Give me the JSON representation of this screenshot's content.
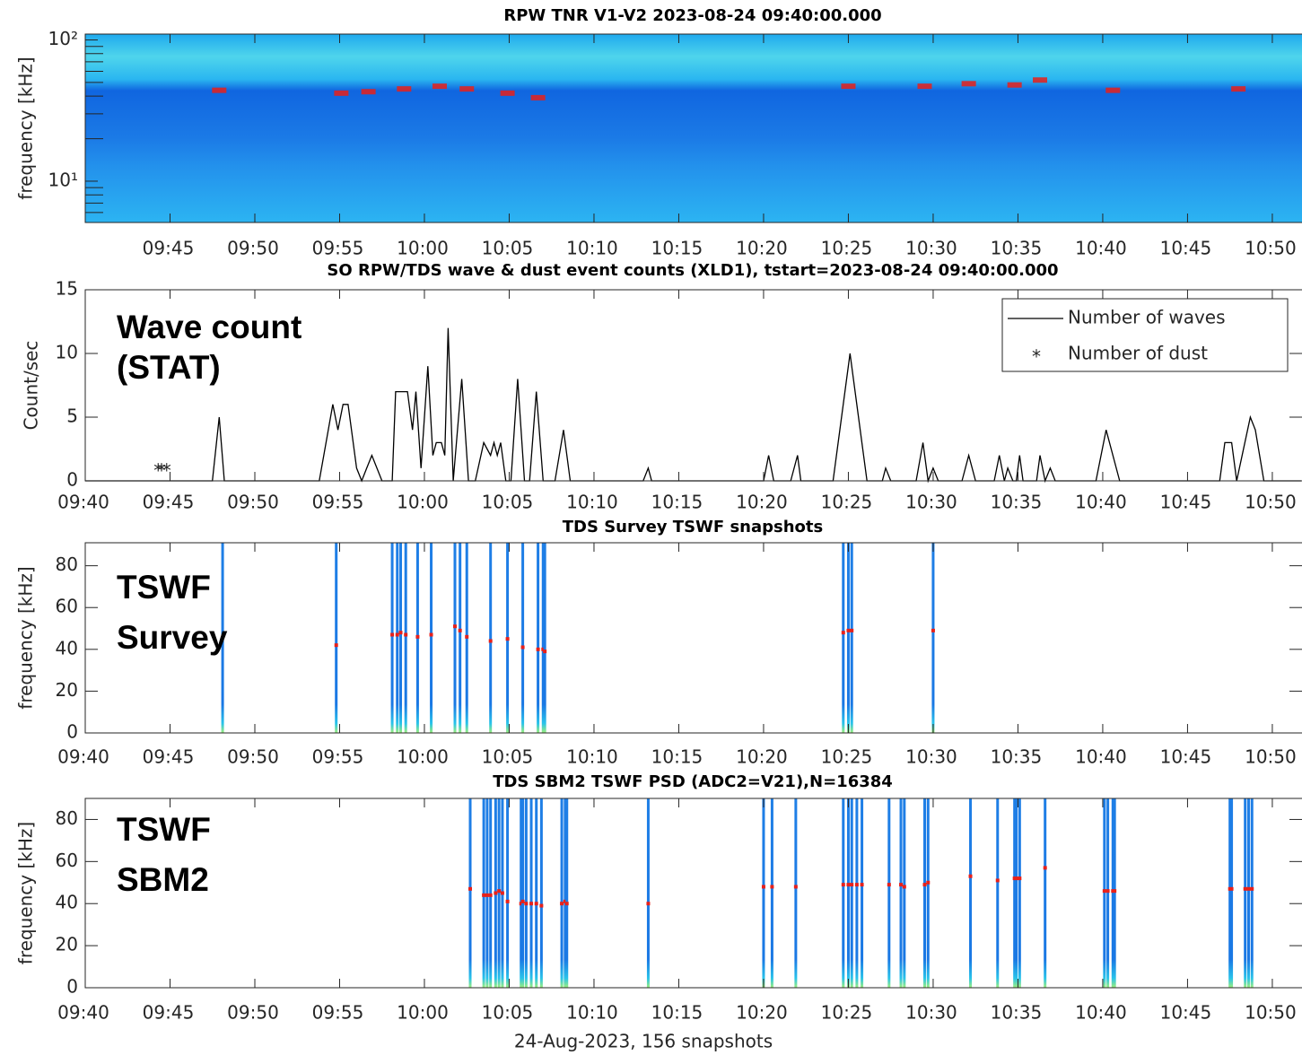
{
  "chart_data": [
    {
      "type": "spectrogram",
      "title": "RPW TNR V1-V2 2023-08-24 09:40:00.000",
      "ylabel": "frequency [kHz]",
      "yscale": "log",
      "xlim": [
        0,
        71.75
      ],
      "xticks": [
        {
          "value": 5,
          "label": "09:45"
        },
        {
          "value": 10,
          "label": "09:50"
        },
        {
          "value": 15,
          "label": "09:55"
        },
        {
          "value": 20,
          "label": "10:00"
        },
        {
          "value": 25,
          "label": "10:05"
        },
        {
          "value": 30,
          "label": "10:10"
        },
        {
          "value": 35,
          "label": "10:15"
        },
        {
          "value": 40,
          "label": "10:20"
        },
        {
          "value": 45,
          "label": "10:25"
        },
        {
          "value": 50,
          "label": "10:30"
        },
        {
          "value": 55,
          "label": "10:35"
        },
        {
          "value": 60,
          "label": "10:40"
        },
        {
          "value": 65,
          "label": "10:45"
        },
        {
          "value": 70,
          "label": "10:50"
        }
      ],
      "ylim": [
        5.1,
        110
      ],
      "yticks": [
        {
          "value": 10,
          "label": "10¹"
        },
        {
          "value": 100,
          "label": "10²"
        }
      ],
      "yminorticks": [
        6,
        7,
        8,
        9,
        20,
        30,
        40,
        50,
        60,
        70,
        80,
        90
      ],
      "color": "#e8201a",
      "x": [
        7.9,
        15.1,
        16.7,
        18.8,
        20.9,
        22.5,
        24.9,
        26.7,
        45.0,
        49.5,
        52.1,
        54.8,
        56.3,
        60.6,
        68.0
      ],
      "values": [
        44,
        42,
        43,
        45,
        47,
        45,
        42,
        39,
        47,
        47,
        49,
        48,
        52,
        44,
        45
      ]
    },
    {
      "type": "line",
      "title": "SO RPW/TDS wave & dust event counts (XLD1), tstart=2023-08-24 09:40:00.000",
      "ylabel": "Count/sec",
      "annotations": [
        "Wave count",
        "(STAT)"
      ],
      "legend": "upper right",
      "xlim": [
        0,
        71.75
      ],
      "xticks": [
        {
          "value": 0,
          "label": "09:40"
        },
        {
          "value": 5,
          "label": "09:45"
        },
        {
          "value": 10,
          "label": "09:50"
        },
        {
          "value": 15,
          "label": "09:55"
        },
        {
          "value": 20,
          "label": "10:00"
        },
        {
          "value": 25,
          "label": "10:05"
        },
        {
          "value": 30,
          "label": "10:10"
        },
        {
          "value": 35,
          "label": "10:15"
        },
        {
          "value": 40,
          "label": "10:20"
        },
        {
          "value": 45,
          "label": "10:25"
        },
        {
          "value": 50,
          "label": "10:30"
        },
        {
          "value": 55,
          "label": "10:35"
        },
        {
          "value": 60,
          "label": "10:40"
        },
        {
          "value": 65,
          "label": "10:45"
        },
        {
          "value": 70,
          "label": "10:50"
        }
      ],
      "ylim": [
        0,
        15
      ],
      "yticks": [
        0,
        5,
        10,
        15
      ],
      "series": [
        {
          "name": "Number of waves",
          "color": "#000000",
          "x": [
            0,
            7.5,
            7.9,
            8.2,
            13.8,
            14.6,
            14.9,
            15.2,
            15.5,
            16.0,
            16.3,
            16.6,
            16.9,
            17.5,
            18.1,
            18.3,
            19.0,
            19.3,
            19.5,
            19.8,
            20.2,
            20.5,
            20.7,
            21.0,
            21.2,
            21.4,
            21.7,
            22.2,
            22.6,
            23.0,
            23.5,
            23.9,
            24.1,
            24.3,
            24.5,
            24.8,
            25.1,
            25.5,
            25.9,
            26.2,
            26.6,
            27.0,
            27.7,
            28.2,
            28.6,
            32.9,
            33.2,
            33.4,
            40.0,
            40.3,
            40.6,
            41.6,
            42.0,
            42.2,
            44.1,
            45.1,
            46.1,
            47.0,
            47.2,
            47.5,
            49.0,
            49.4,
            49.7,
            50.0,
            50.3,
            51.7,
            52.1,
            52.5,
            53.6,
            53.9,
            54.2,
            54.4,
            54.7,
            54.9,
            55.1,
            55.3,
            56.1,
            56.3,
            56.6,
            56.9,
            57.2,
            59.6,
            60.2,
            61.0,
            66.9,
            67.2,
            67.6,
            67.9,
            68.7,
            69.0,
            69.5,
            71.7
          ],
          "values": [
            0,
            0,
            5,
            0,
            0,
            6,
            4,
            6,
            6,
            1,
            0,
            1,
            2,
            0,
            0,
            7,
            7,
            4,
            7,
            1,
            9,
            2,
            3,
            3,
            2,
            12,
            0,
            8,
            0,
            0,
            3,
            2,
            3,
            2,
            3,
            0,
            0,
            8,
            0,
            0,
            7,
            0,
            0,
            4,
            0,
            0,
            1,
            0,
            0,
            2,
            0,
            0,
            2,
            0,
            0,
            10,
            0,
            0,
            1,
            0,
            0,
            3,
            0,
            1,
            0,
            0,
            2,
            0,
            0,
            2,
            0,
            1,
            0,
            0,
            2,
            0,
            0,
            2,
            0,
            1,
            0,
            0,
            4,
            0,
            0,
            3,
            3,
            0,
            5,
            4,
            0,
            0
          ]
        },
        {
          "name": "Number of dust",
          "color": "#ff0000",
          "marker": "*",
          "x": [
            4.3,
            4.5,
            4.8
          ],
          "values": [
            1,
            1,
            1
          ]
        }
      ]
    },
    {
      "type": "snapshots",
      "title": "TDS Survey TSWF snapshots",
      "ylabel": "frequency [kHz]",
      "annotations": [
        "TSWF",
        "Survey"
      ],
      "xlim": [
        0,
        71.75
      ],
      "xticks": [
        {
          "value": 0,
          "label": "09:40"
        },
        {
          "value": 5,
          "label": "09:45"
        },
        {
          "value": 10,
          "label": "09:50"
        },
        {
          "value": 15,
          "label": "09:55"
        },
        {
          "value": 20,
          "label": "10:00"
        },
        {
          "value": 25,
          "label": "10:05"
        },
        {
          "value": 30,
          "label": "10:10"
        },
        {
          "value": 35,
          "label": "10:15"
        },
        {
          "value": 40,
          "label": "10:20"
        },
        {
          "value": 45,
          "label": "10:25"
        },
        {
          "value": 50,
          "label": "10:30"
        },
        {
          "value": 55,
          "label": "10:35"
        },
        {
          "value": 60,
          "label": "10:40"
        },
        {
          "value": 65,
          "label": "10:45"
        },
        {
          "value": 70,
          "label": "10:50"
        }
      ],
      "ylim": [
        0,
        91
      ],
      "yticks": [
        0,
        20,
        40,
        60,
        80
      ],
      "color": "#1a7fe8",
      "x": [
        8.1,
        14.8,
        18.1,
        18.4,
        18.6,
        18.9,
        19.6,
        20.4,
        21.8,
        22.1,
        22.5,
        23.9,
        24.9,
        25.8,
        26.7,
        27.0,
        27.1,
        44.7,
        45.0,
        45.2,
        50.0
      ],
      "values": [
        null,
        42,
        47,
        47,
        48,
        47,
        46,
        47,
        51,
        49,
        46,
        44,
        45,
        41,
        40,
        40,
        39,
        48,
        49,
        49,
        49
      ]
    },
    {
      "type": "snapshots",
      "title": "TDS SBM2 TSWF PSD (ADC2=V21),N=16384",
      "ylabel": "frequency [kHz]",
      "xlabel": "24-Aug-2023, 156 snapshots",
      "annotations": [
        "TSWF",
        "SBM2"
      ],
      "xlim": [
        0,
        71.75
      ],
      "xticks": [
        {
          "value": 0,
          "label": "09:40"
        },
        {
          "value": 5,
          "label": "09:45"
        },
        {
          "value": 10,
          "label": "09:50"
        },
        {
          "value": 15,
          "label": "09:55"
        },
        {
          "value": 20,
          "label": "10:00"
        },
        {
          "value": 25,
          "label": "10:05"
        },
        {
          "value": 30,
          "label": "10:10"
        },
        {
          "value": 35,
          "label": "10:15"
        },
        {
          "value": 40,
          "label": "10:20"
        },
        {
          "value": 45,
          "label": "10:25"
        },
        {
          "value": 50,
          "label": "10:30"
        },
        {
          "value": 55,
          "label": "10:35"
        },
        {
          "value": 60,
          "label": "10:40"
        },
        {
          "value": 65,
          "label": "10:45"
        },
        {
          "value": 70,
          "label": "10:50"
        }
      ],
      "ylim": [
        0,
        90
      ],
      "yticks": [
        0,
        20,
        40,
        60,
        80
      ],
      "color": "#1a7fe8",
      "x": [
        22.7,
        23.5,
        23.7,
        23.9,
        24.2,
        24.4,
        24.6,
        24.9,
        25.7,
        25.8,
        26.0,
        26.3,
        26.6,
        26.9,
        28.1,
        28.3,
        28.4,
        33.2,
        40.0,
        40.5,
        41.9,
        44.7,
        45.0,
        45.2,
        45.5,
        45.8,
        47.4,
        48.1,
        48.3,
        49.5,
        49.7,
        52.2,
        53.8,
        54.8,
        54.9,
        55.1,
        56.6,
        60.1,
        60.3,
        60.6,
        60.7,
        67.5,
        67.6,
        68.4,
        68.6,
        68.8
      ],
      "values": [
        47,
        44,
        44,
        44,
        45,
        46,
        45,
        41,
        40,
        41,
        40,
        40,
        40,
        39,
        40,
        41,
        40,
        40,
        48,
        48,
        48,
        49,
        49,
        49,
        49,
        49,
        49,
        49,
        48,
        49,
        50,
        53,
        51,
        52,
        52,
        52,
        57,
        46,
        46,
        46,
        46,
        47,
        47,
        47,
        47,
        47
      ]
    }
  ]
}
